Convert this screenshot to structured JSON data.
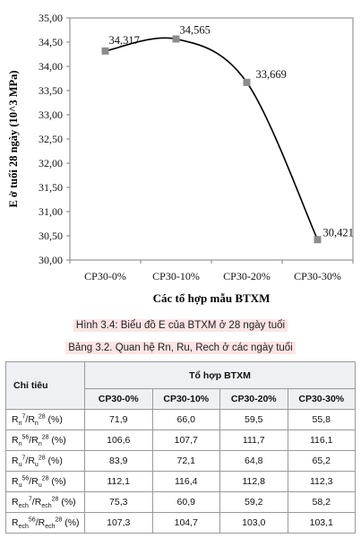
{
  "chart_data": {
    "type": "line",
    "ylabel": "E ở tuổi 28 ngày (10^3 MPa)",
    "xlabel": "Các tổ hợp mẫu BTXM",
    "categories": [
      "CP30-0%",
      "CP30-10%",
      "CP30-20%",
      "CP30-30%"
    ],
    "values": [
      34.317,
      34.565,
      33.669,
      30.421
    ],
    "data_labels": [
      "34,317",
      "34,565",
      "33,669",
      "30,421"
    ],
    "ylim": [
      30.0,
      35.0
    ],
    "yticks": [
      "30,00",
      "30,50",
      "31,00",
      "31,50",
      "32,00",
      "32,50",
      "33,00",
      "33,50",
      "34,00",
      "34,50",
      "35,00"
    ],
    "grid": false,
    "smooth": true,
    "marker": "square",
    "line_color": "#000000",
    "marker_color": "#8c8c8c"
  },
  "figure_caption": "Hình 3.4: Biểu đồ E của BTXM ở 28 ngày tuổi",
  "table_caption": "Bảng 3.2. Quan hệ Rn, Ru, Rech ở các ngày tuổi",
  "table": {
    "row_header": "Chỉ tiêu",
    "group_header": "Tổ hợp BTXM",
    "columns": [
      "CP30-0%",
      "CP30-10%",
      "CP30-20%",
      "CP30-30%"
    ],
    "rows": [
      {
        "label": {
          "a": "R",
          "a_sub": "n",
          "a_sup": "7",
          "sep": "/",
          "b": "R",
          "b_sub": "n",
          "b_sup": "28",
          "unit": " (%)"
        },
        "values": [
          "71,9",
          "66,0",
          "59,5",
          "55,8"
        ]
      },
      {
        "label": {
          "a": "R",
          "a_sub": "n",
          "a_sup": "56",
          "sep": "/",
          "b": "R",
          "b_sub": "n",
          "b_sup": "28",
          "unit": " (%)"
        },
        "values": [
          "106,6",
          "107,7",
          "111,7",
          "116,1"
        ]
      },
      {
        "label": {
          "a": "R",
          "a_sub": "u",
          "a_sup": "7",
          "sep": "/",
          "b": "R",
          "b_sub": "u",
          "b_sup": "28",
          "unit": " (%)"
        },
        "values": [
          "83,9",
          "72,1",
          "64,8",
          "65,2"
        ]
      },
      {
        "label": {
          "a": "R",
          "a_sub": "u",
          "a_sup": "56",
          "sep": "/",
          "b": "R",
          "b_sub": "u",
          "b_sup": "28",
          "unit": " (%)"
        },
        "values": [
          "112,1",
          "116,4",
          "112,8",
          "112,3"
        ]
      },
      {
        "label": {
          "a": "R",
          "a_sub": "ech",
          "a_sup": "7",
          "sep": "/",
          "b": "R",
          "b_sub": "ech",
          "b_sup": "28",
          "unit": " (%)"
        },
        "values": [
          "75,3",
          "60,9",
          "59,2",
          "58,2"
        ]
      },
      {
        "label": {
          "a": "R",
          "a_sub": "ech",
          "a_sup": "56",
          "sep": "/",
          "b": "R",
          "b_sub": "ech",
          "b_sup": "28",
          "unit": " (%)"
        },
        "values": [
          "107,3",
          "104,7",
          "103,0",
          "103,1"
        ]
      }
    ]
  }
}
